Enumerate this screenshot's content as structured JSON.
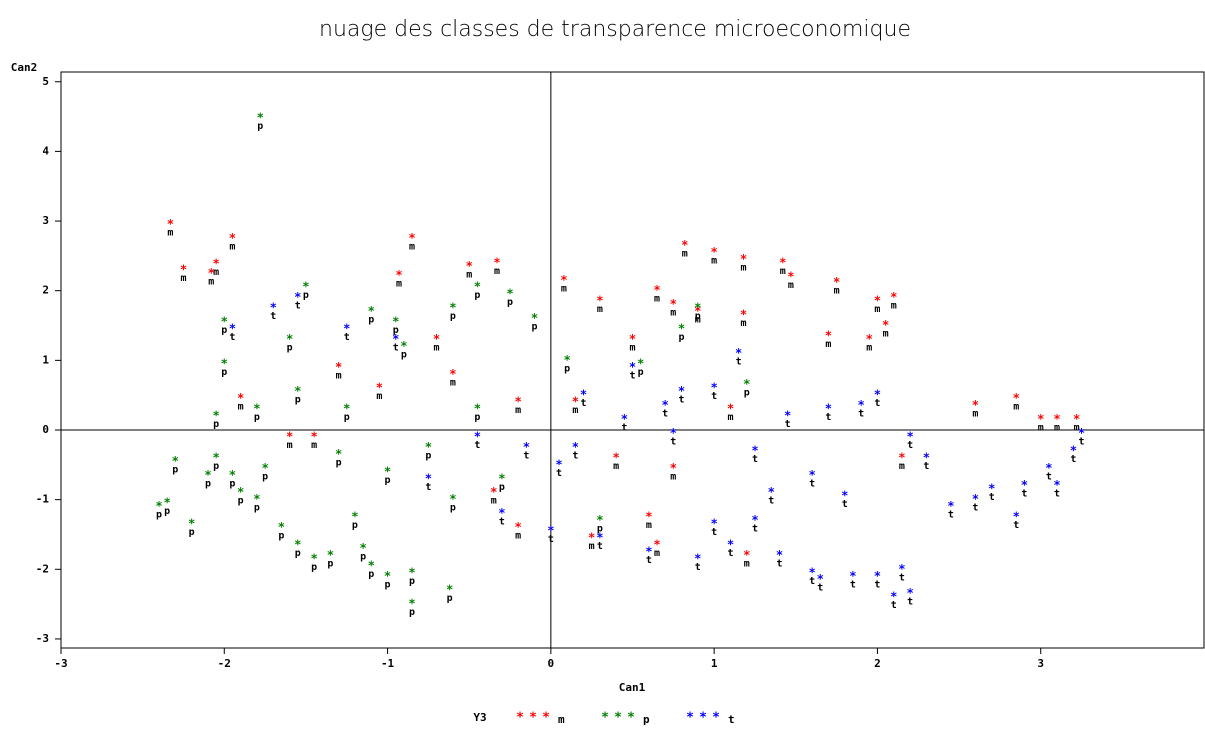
{
  "chart_data": {
    "type": "scatter",
    "title": "nuage des classes de transparence microeconomique",
    "x_label": "Can1",
    "y_label": "Can2",
    "legend_title": "Y3",
    "xlim": [
      -3,
      4
    ],
    "ylim": [
      -3.13,
      5.14
    ],
    "xticks": [
      -3,
      -2,
      -1,
      0,
      1,
      2,
      3
    ],
    "yticks": [
      -3,
      -2,
      -1,
      0,
      1,
      2,
      3,
      4,
      5
    ],
    "reference_lines": true,
    "series": [
      {
        "name": "m",
        "color": "#ff0000",
        "x": [
          -2.33,
          -2.25,
          -2.05,
          -2.08,
          -1.95,
          -0.85,
          -0.93,
          -0.5,
          -0.33,
          0.08,
          0.3,
          0.5,
          0.65,
          0.82,
          1.0,
          1.18,
          1.42,
          1.47,
          1.75,
          2.0,
          2.1,
          1.7,
          1.95,
          2.05,
          1.18,
          0.9,
          0.75,
          2.6,
          2.85,
          3.0,
          3.1,
          3.22,
          -1.3,
          -1.05,
          -0.7,
          -0.6,
          -0.35,
          -0.2,
          0.25,
          0.6,
          0.65,
          1.2,
          0.75,
          1.1,
          0.15,
          -1.9,
          -1.6,
          -1.45,
          -0.2,
          0.4,
          2.15
        ],
        "values": [
          2.95,
          2.3,
          2.38,
          2.25,
          2.75,
          2.75,
          2.22,
          2.35,
          2.4,
          2.15,
          1.85,
          1.3,
          2.0,
          2.65,
          2.55,
          2.45,
          2.4,
          2.2,
          2.12,
          1.85,
          1.9,
          1.35,
          1.3,
          1.5,
          1.65,
          1.7,
          1.8,
          0.35,
          0.45,
          0.15,
          0.15,
          0.15,
          0.9,
          0.6,
          1.3,
          0.8,
          -0.9,
          -1.4,
          -1.55,
          -1.25,
          -1.65,
          -1.8,
          -0.55,
          0.3,
          0.4,
          0.45,
          -0.1,
          -0.1,
          0.4,
          -0.4,
          -0.4
        ]
      },
      {
        "name": "p",
        "color": "#008000",
        "x": [
          -1.78,
          -2.3,
          -2.4,
          -2.35,
          -2.2,
          -2.1,
          -2.05,
          -2.0,
          -2.0,
          -1.9,
          -1.8,
          -1.65,
          -1.6,
          -1.55,
          -1.5,
          -1.45,
          -1.35,
          -1.15,
          -1.1,
          -1.0,
          -0.85,
          -0.62,
          -0.85,
          -1.2,
          -1.1,
          -0.95,
          -0.9,
          -0.6,
          -0.45,
          -0.25,
          -0.1,
          0.1,
          0.3,
          0.55,
          0.8,
          0.9,
          1.2,
          -1.55,
          -1.3,
          -1.0,
          -0.75,
          -0.45,
          -0.3,
          -1.75,
          -1.95,
          -2.05,
          -1.8,
          -1.25,
          -0.6
        ],
        "values": [
          4.48,
          -0.45,
          -1.1,
          -1.05,
          -1.35,
          -0.65,
          -0.4,
          0.95,
          1.55,
          -0.9,
          -1.0,
          -1.4,
          1.3,
          -1.65,
          2.05,
          -1.85,
          -1.8,
          -1.7,
          -1.95,
          -2.1,
          -2.5,
          -2.3,
          -2.05,
          -1.25,
          1.7,
          1.55,
          1.2,
          1.75,
          2.05,
          1.95,
          1.6,
          1.0,
          -1.3,
          0.95,
          1.45,
          1.75,
          0.65,
          0.55,
          -0.35,
          -0.6,
          -0.25,
          0.3,
          -0.7,
          -0.55,
          -0.65,
          0.2,
          0.3,
          0.3,
          -1.0
        ]
      },
      {
        "name": "t",
        "color": "#0000ff",
        "x": [
          -1.95,
          -1.7,
          -1.55,
          -1.25,
          -0.95,
          -0.75,
          -0.45,
          -0.3,
          -0.15,
          0.0,
          0.05,
          0.15,
          0.2,
          0.3,
          0.45,
          0.6,
          0.7,
          0.9,
          1.0,
          1.1,
          1.25,
          1.35,
          1.4,
          1.45,
          1.6,
          1.65,
          1.85,
          2.0,
          2.1,
          2.2,
          2.15,
          2.2,
          2.3,
          2.45,
          2.6,
          2.7,
          2.85,
          2.9,
          3.05,
          3.1,
          3.2,
          3.25,
          1.7,
          1.9,
          2.0,
          1.0,
          0.8,
          0.5,
          1.15,
          1.6,
          1.8,
          0.75,
          1.25
        ],
        "values": [
          1.45,
          1.75,
          1.9,
          1.45,
          1.3,
          -0.7,
          -0.1,
          -1.2,
          -0.25,
          -1.45,
          -0.5,
          -0.25,
          0.5,
          -1.55,
          0.15,
          -1.75,
          0.35,
          -1.85,
          -1.35,
          -1.65,
          -1.3,
          -0.9,
          -1.8,
          0.2,
          -2.05,
          -2.15,
          -2.1,
          -2.1,
          -2.4,
          -2.35,
          -2.0,
          -0.1,
          -0.4,
          -1.1,
          -1.0,
          -0.85,
          -1.25,
          -0.8,
          -0.55,
          -0.8,
          -0.3,
          -0.05,
          0.3,
          0.35,
          0.5,
          0.6,
          0.55,
          0.9,
          1.1,
          -0.65,
          -0.95,
          -0.05,
          -0.3
        ]
      }
    ]
  }
}
